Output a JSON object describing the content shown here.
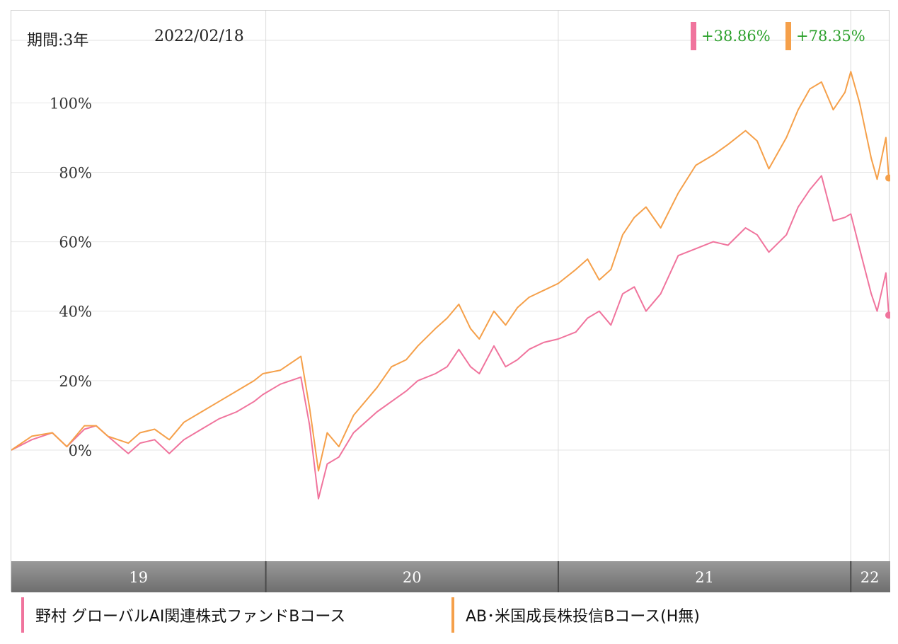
{
  "header": {
    "period_label": "期間:3年",
    "date_label": "2022/02/18"
  },
  "changes": [
    {
      "value": "+38.86%",
      "color": "#f0749d"
    },
    {
      "value": "+78.35%",
      "color": "#f5a04a"
    }
  ],
  "legend": [
    {
      "label": "野村 グローバルAI関連株式ファンドBコース",
      "color": "#f0749d"
    },
    {
      "label": "AB･米国成長株投信Bコース(H無)",
      "color": "#f5a04a"
    }
  ],
  "chart_data": {
    "type": "line",
    "x_tick_labels": [
      "19",
      "20",
      "21",
      "22"
    ],
    "y_tick_labels": [
      "0%",
      "20%",
      "40%",
      "60%",
      "80%",
      "100%"
    ],
    "y_ticks": [
      0,
      20,
      40,
      60,
      80,
      100
    ],
    "ylim": [
      -32,
      118
    ],
    "xlim": [
      2019.13,
      2022.13
    ],
    "x_boundaries": [
      2020.0,
      2021.0,
      2022.0
    ],
    "grid": true,
    "series": [
      {
        "name": "野村 グローバルAI関連株式ファンドBコース",
        "color": "#f0749d",
        "final_label": "+38.86%",
        "points": [
          [
            2019.13,
            0
          ],
          [
            2019.2,
            3
          ],
          [
            2019.27,
            5
          ],
          [
            2019.32,
            1
          ],
          [
            2019.38,
            6
          ],
          [
            2019.42,
            7
          ],
          [
            2019.46,
            4
          ],
          [
            2019.53,
            -1
          ],
          [
            2019.57,
            2
          ],
          [
            2019.62,
            3
          ],
          [
            2019.67,
            -1
          ],
          [
            2019.72,
            3
          ],
          [
            2019.78,
            6
          ],
          [
            2019.84,
            9
          ],
          [
            2019.9,
            11
          ],
          [
            2019.96,
            14
          ],
          [
            2019.99,
            16
          ],
          [
            2020.05,
            19
          ],
          [
            2020.12,
            21
          ],
          [
            2020.15,
            7
          ],
          [
            2020.18,
            -14
          ],
          [
            2020.21,
            -4
          ],
          [
            2020.25,
            -2
          ],
          [
            2020.3,
            5
          ],
          [
            2020.38,
            11
          ],
          [
            2020.43,
            14
          ],
          [
            2020.48,
            17
          ],
          [
            2020.52,
            20
          ],
          [
            2020.58,
            22
          ],
          [
            2020.62,
            24
          ],
          [
            2020.66,
            29
          ],
          [
            2020.7,
            24
          ],
          [
            2020.73,
            22
          ],
          [
            2020.78,
            30
          ],
          [
            2020.82,
            24
          ],
          [
            2020.86,
            26
          ],
          [
            2020.9,
            29
          ],
          [
            2020.95,
            31
          ],
          [
            2021.0,
            32
          ],
          [
            2021.06,
            34
          ],
          [
            2021.1,
            38
          ],
          [
            2021.14,
            40
          ],
          [
            2021.18,
            36
          ],
          [
            2021.22,
            45
          ],
          [
            2021.26,
            47
          ],
          [
            2021.3,
            40
          ],
          [
            2021.35,
            45
          ],
          [
            2021.41,
            56
          ],
          [
            2021.47,
            58
          ],
          [
            2021.53,
            60
          ],
          [
            2021.58,
            59
          ],
          [
            2021.64,
            64
          ],
          [
            2021.68,
            62
          ],
          [
            2021.72,
            57
          ],
          [
            2021.78,
            62
          ],
          [
            2021.82,
            70
          ],
          [
            2021.86,
            75
          ],
          [
            2021.9,
            79
          ],
          [
            2021.94,
            66
          ],
          [
            2021.98,
            67
          ],
          [
            2022.0,
            68
          ],
          [
            2022.03,
            58
          ],
          [
            2022.07,
            45
          ],
          [
            2022.09,
            40
          ],
          [
            2022.12,
            51
          ],
          [
            2022.13,
            38.86
          ]
        ]
      },
      {
        "name": "AB･米国成長株投信Bコース(H無)",
        "color": "#f5a04a",
        "final_label": "+78.35%",
        "points": [
          [
            2019.13,
            0
          ],
          [
            2019.2,
            4
          ],
          [
            2019.27,
            5
          ],
          [
            2019.32,
            1
          ],
          [
            2019.38,
            7
          ],
          [
            2019.42,
            7
          ],
          [
            2019.46,
            4
          ],
          [
            2019.53,
            2
          ],
          [
            2019.57,
            5
          ],
          [
            2019.62,
            6
          ],
          [
            2019.67,
            3
          ],
          [
            2019.72,
            8
          ],
          [
            2019.78,
            11
          ],
          [
            2019.84,
            14
          ],
          [
            2019.9,
            17
          ],
          [
            2019.96,
            20
          ],
          [
            2019.99,
            22
          ],
          [
            2020.05,
            23
          ],
          [
            2020.12,
            27
          ],
          [
            2020.15,
            12
          ],
          [
            2020.18,
            -6
          ],
          [
            2020.21,
            5
          ],
          [
            2020.25,
            1
          ],
          [
            2020.3,
            10
          ],
          [
            2020.38,
            18
          ],
          [
            2020.43,
            24
          ],
          [
            2020.48,
            26
          ],
          [
            2020.52,
            30
          ],
          [
            2020.58,
            35
          ],
          [
            2020.62,
            38
          ],
          [
            2020.66,
            42
          ],
          [
            2020.7,
            35
          ],
          [
            2020.73,
            32
          ],
          [
            2020.78,
            40
          ],
          [
            2020.82,
            36
          ],
          [
            2020.86,
            41
          ],
          [
            2020.9,
            44
          ],
          [
            2020.95,
            46
          ],
          [
            2021.0,
            48
          ],
          [
            2021.06,
            52
          ],
          [
            2021.1,
            55
          ],
          [
            2021.14,
            49
          ],
          [
            2021.18,
            52
          ],
          [
            2021.22,
            62
          ],
          [
            2021.26,
            67
          ],
          [
            2021.3,
            70
          ],
          [
            2021.35,
            64
          ],
          [
            2021.41,
            74
          ],
          [
            2021.47,
            82
          ],
          [
            2021.53,
            85
          ],
          [
            2021.58,
            88
          ],
          [
            2021.64,
            92
          ],
          [
            2021.68,
            89
          ],
          [
            2021.72,
            81
          ],
          [
            2021.78,
            90
          ],
          [
            2021.82,
            98
          ],
          [
            2021.86,
            104
          ],
          [
            2021.9,
            106
          ],
          [
            2021.94,
            98
          ],
          [
            2021.98,
            103
          ],
          [
            2022.0,
            109
          ],
          [
            2022.03,
            100
          ],
          [
            2022.07,
            84
          ],
          [
            2022.09,
            78
          ],
          [
            2022.12,
            90
          ],
          [
            2022.13,
            78.35
          ]
        ]
      }
    ]
  }
}
